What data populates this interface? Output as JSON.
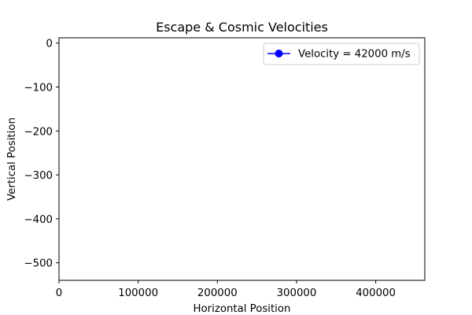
{
  "chart_data": {
    "type": "line",
    "title": "Escape & Cosmic Velocities",
    "xlabel": "Horizontal Position",
    "ylabel": "Vertical Position",
    "xlim": [
      0,
      462000
    ],
    "ylim": [
      -540,
      12
    ],
    "x_ticks": [
      0,
      100000,
      200000,
      300000,
      400000
    ],
    "x_tick_labels": [
      "0",
      "100000",
      "200000",
      "300000",
      "400000"
    ],
    "y_ticks": [
      0,
      -100,
      -200,
      -300,
      -400,
      -500
    ],
    "y_tick_labels": [
      "0",
      "−100",
      "−200",
      "−300",
      "−400",
      "−500"
    ],
    "grid": false,
    "legend_position": "top-right",
    "series": [
      {
        "name": "Velocity = 42000 m/s",
        "color": "#0000ff",
        "marker": "circle",
        "x": [],
        "y": []
      }
    ]
  }
}
